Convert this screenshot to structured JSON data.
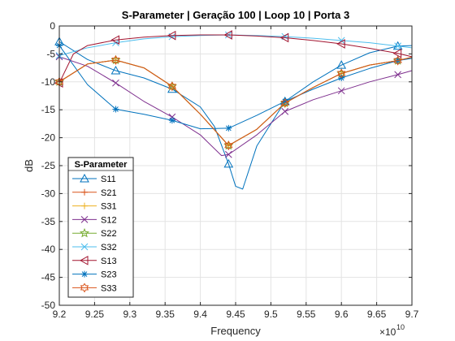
{
  "chart_data": {
    "type": "line",
    "title": "S-Parameter  |  Geração 100  |  Loop 10  |  Porta 3",
    "xlabel": "Frequency",
    "ylabel": "dB",
    "x_exponent_base": "×10",
    "x_exponent_power": "10",
    "xlim": [
      9.2,
      9.7
    ],
    "ylim": [
      -50,
      0
    ],
    "xticks": [
      "9.2",
      "9.25",
      "9.3",
      "9.35",
      "9.4",
      "9.45",
      "9.5",
      "9.55",
      "9.6",
      "9.65",
      "9.7"
    ],
    "yticks": [
      "-50",
      "-45",
      "-40",
      "-35",
      "-30",
      "-25",
      "-20",
      "-15",
      "-10",
      "-5",
      "0"
    ],
    "grid": true,
    "legend_title": "S-Parameter",
    "legend_location": "lower-left",
    "series": [
      {
        "name": "S11",
        "color": "#0072BD",
        "marker": "triangle",
        "points": [
          [
            9.2,
            -2.8
          ],
          [
            9.24,
            -6.0
          ],
          [
            9.28,
            -8.0
          ],
          [
            9.32,
            -9.3
          ],
          [
            9.36,
            -11.3
          ],
          [
            9.4,
            -14.5
          ],
          [
            9.42,
            -18.0
          ],
          [
            9.44,
            -24.7
          ],
          [
            9.45,
            -28.7
          ],
          [
            9.46,
            -29.2
          ],
          [
            9.48,
            -21.5
          ],
          [
            9.52,
            -13.5
          ],
          [
            9.56,
            -10.0
          ],
          [
            9.6,
            -7.0
          ],
          [
            9.64,
            -4.8
          ],
          [
            9.68,
            -3.6
          ],
          [
            9.7,
            -3.5
          ]
        ],
        "markers": [
          [
            9.2,
            -2.8
          ],
          [
            9.28,
            -8.0
          ],
          [
            9.36,
            -11.3
          ],
          [
            9.44,
            -24.7
          ],
          [
            9.52,
            -13.5
          ],
          [
            9.6,
            -7.0
          ],
          [
            9.68,
            -3.6
          ]
        ]
      },
      {
        "name": "S21",
        "color": "#D95319",
        "marker": "plus",
        "points": [
          [
            9.2,
            -10.0
          ],
          [
            9.24,
            -6.8
          ],
          [
            9.28,
            -6.1
          ],
          [
            9.32,
            -7.5
          ],
          [
            9.36,
            -10.8
          ],
          [
            9.4,
            -15.8
          ],
          [
            9.44,
            -21.4
          ],
          [
            9.48,
            -18.5
          ],
          [
            9.52,
            -13.8
          ],
          [
            9.56,
            -11.0
          ],
          [
            9.6,
            -8.5
          ],
          [
            9.64,
            -7.0
          ],
          [
            9.68,
            -6.2
          ],
          [
            9.7,
            -5.6
          ]
        ],
        "markers": [
          [
            9.2,
            -10.0
          ],
          [
            9.28,
            -6.1
          ],
          [
            9.36,
            -10.8
          ],
          [
            9.44,
            -21.4
          ],
          [
            9.52,
            -13.8
          ],
          [
            9.6,
            -8.5
          ],
          [
            9.68,
            -6.2
          ]
        ]
      },
      {
        "name": "S31",
        "color": "#EDB120",
        "marker": "plus",
        "points": [
          [
            9.2,
            -10.0
          ],
          [
            9.24,
            -6.8
          ],
          [
            9.28,
            -6.1
          ],
          [
            9.32,
            -7.5
          ],
          [
            9.36,
            -10.8
          ],
          [
            9.4,
            -15.8
          ],
          [
            9.44,
            -21.4
          ],
          [
            9.48,
            -18.5
          ],
          [
            9.52,
            -13.8
          ],
          [
            9.56,
            -11.0
          ],
          [
            9.6,
            -8.5
          ],
          [
            9.64,
            -7.0
          ],
          [
            9.68,
            -6.2
          ],
          [
            9.7,
            -5.6
          ]
        ],
        "markers": [
          [
            9.2,
            -10.0
          ],
          [
            9.28,
            -6.1
          ],
          [
            9.36,
            -10.8
          ],
          [
            9.44,
            -21.4
          ],
          [
            9.52,
            -13.8
          ],
          [
            9.6,
            -8.5
          ],
          [
            9.68,
            -6.2
          ]
        ]
      },
      {
        "name": "S12",
        "color": "#7E2F8E",
        "marker": "x",
        "points": [
          [
            9.2,
            -5.5
          ],
          [
            9.24,
            -7.2
          ],
          [
            9.28,
            -10.2
          ],
          [
            9.32,
            -13.5
          ],
          [
            9.36,
            -16.3
          ],
          [
            9.4,
            -19.5
          ],
          [
            9.43,
            -23.2
          ],
          [
            9.44,
            -23.0
          ],
          [
            9.48,
            -19.5
          ],
          [
            9.52,
            -15.3
          ],
          [
            9.56,
            -13.2
          ],
          [
            9.6,
            -11.6
          ],
          [
            9.64,
            -10.0
          ],
          [
            9.68,
            -8.7
          ],
          [
            9.7,
            -8.0
          ]
        ],
        "markers": [
          [
            9.2,
            -5.5
          ],
          [
            9.28,
            -10.2
          ],
          [
            9.36,
            -16.3
          ],
          [
            9.44,
            -23.0
          ],
          [
            9.52,
            -15.3
          ],
          [
            9.6,
            -11.6
          ],
          [
            9.68,
            -8.7
          ]
        ]
      },
      {
        "name": "S22",
        "color": "#77AC30",
        "marker": "star",
        "points": [
          [
            9.2,
            -10.0
          ],
          [
            9.24,
            -6.8
          ],
          [
            9.28,
            -6.1
          ],
          [
            9.32,
            -7.5
          ],
          [
            9.36,
            -10.8
          ],
          [
            9.4,
            -15.8
          ],
          [
            9.44,
            -21.4
          ],
          [
            9.48,
            -18.5
          ],
          [
            9.52,
            -13.8
          ],
          [
            9.56,
            -11.0
          ],
          [
            9.6,
            -8.5
          ],
          [
            9.64,
            -7.0
          ],
          [
            9.68,
            -6.2
          ],
          [
            9.7,
            -5.6
          ]
        ],
        "markers": [
          [
            9.2,
            -10.0
          ],
          [
            9.28,
            -6.1
          ],
          [
            9.36,
            -10.8
          ],
          [
            9.44,
            -21.4
          ],
          [
            9.52,
            -13.8
          ],
          [
            9.6,
            -8.5
          ],
          [
            9.68,
            -6.2
          ]
        ]
      },
      {
        "name": "S32",
        "color": "#4DBEEE",
        "marker": "x",
        "points": [
          [
            9.2,
            -5.3
          ],
          [
            9.24,
            -3.9
          ],
          [
            9.28,
            -3.0
          ],
          [
            9.32,
            -2.3
          ],
          [
            9.36,
            -1.9
          ],
          [
            9.4,
            -1.7
          ],
          [
            9.44,
            -1.6
          ],
          [
            9.48,
            -1.7
          ],
          [
            9.52,
            -1.9
          ],
          [
            9.56,
            -2.2
          ],
          [
            9.6,
            -2.6
          ],
          [
            9.64,
            -3.0
          ],
          [
            9.68,
            -3.6
          ],
          [
            9.7,
            -3.9
          ]
        ],
        "markers": [
          [
            9.2,
            -5.3
          ],
          [
            9.28,
            -3.0
          ],
          [
            9.36,
            -1.9
          ],
          [
            9.44,
            -1.6
          ],
          [
            9.52,
            -1.9
          ],
          [
            9.6,
            -2.6
          ],
          [
            9.68,
            -3.6
          ]
        ]
      },
      {
        "name": "S13",
        "color": "#A2142F",
        "marker": "triangle-left",
        "points": [
          [
            9.2,
            -10.2
          ],
          [
            9.22,
            -5.0
          ],
          [
            9.24,
            -3.5
          ],
          [
            9.28,
            -2.5
          ],
          [
            9.32,
            -2.0
          ],
          [
            9.36,
            -1.7
          ],
          [
            9.4,
            -1.6
          ],
          [
            9.44,
            -1.6
          ],
          [
            9.48,
            -1.8
          ],
          [
            9.52,
            -2.1
          ],
          [
            9.56,
            -2.6
          ],
          [
            9.6,
            -3.2
          ],
          [
            9.64,
            -4.0
          ],
          [
            9.68,
            -4.9
          ],
          [
            9.7,
            -5.5
          ]
        ],
        "markers": [
          [
            9.2,
            -10.2
          ],
          [
            9.28,
            -2.5
          ],
          [
            9.36,
            -1.7
          ],
          [
            9.44,
            -1.6
          ],
          [
            9.52,
            -2.1
          ],
          [
            9.6,
            -3.2
          ],
          [
            9.68,
            -4.9
          ]
        ]
      },
      {
        "name": "S23",
        "color": "#0072BD",
        "marker": "asterisk",
        "points": [
          [
            9.2,
            -3.5
          ],
          [
            9.24,
            -10.5
          ],
          [
            9.28,
            -14.9
          ],
          [
            9.32,
            -15.8
          ],
          [
            9.36,
            -16.9
          ],
          [
            9.4,
            -18.4
          ],
          [
            9.44,
            -18.3
          ],
          [
            9.48,
            -16.0
          ],
          [
            9.52,
            -13.5
          ],
          [
            9.56,
            -11.3
          ],
          [
            9.6,
            -9.3
          ],
          [
            9.64,
            -7.6
          ],
          [
            9.68,
            -6.2
          ],
          [
            9.7,
            -5.8
          ]
        ],
        "markers": [
          [
            9.2,
            -3.5
          ],
          [
            9.28,
            -14.9
          ],
          [
            9.36,
            -16.9
          ],
          [
            9.44,
            -18.3
          ],
          [
            9.52,
            -13.5
          ],
          [
            9.6,
            -9.3
          ],
          [
            9.68,
            -6.2
          ]
        ]
      },
      {
        "name": "S33",
        "color": "#D95319",
        "marker": "hexagram",
        "points": [
          [
            9.2,
            -10.0
          ],
          [
            9.24,
            -6.8
          ],
          [
            9.28,
            -6.1
          ],
          [
            9.32,
            -7.5
          ],
          [
            9.36,
            -10.8
          ],
          [
            9.4,
            -15.8
          ],
          [
            9.44,
            -21.4
          ],
          [
            9.48,
            -18.5
          ],
          [
            9.52,
            -13.8
          ],
          [
            9.56,
            -11.0
          ],
          [
            9.6,
            -8.5
          ],
          [
            9.64,
            -7.0
          ],
          [
            9.68,
            -6.2
          ],
          [
            9.7,
            -5.6
          ]
        ],
        "markers": [
          [
            9.2,
            -10.0
          ],
          [
            9.28,
            -6.1
          ],
          [
            9.36,
            -10.8
          ],
          [
            9.44,
            -21.4
          ],
          [
            9.52,
            -13.8
          ],
          [
            9.6,
            -8.5
          ],
          [
            9.68,
            -6.2
          ]
        ]
      }
    ]
  }
}
